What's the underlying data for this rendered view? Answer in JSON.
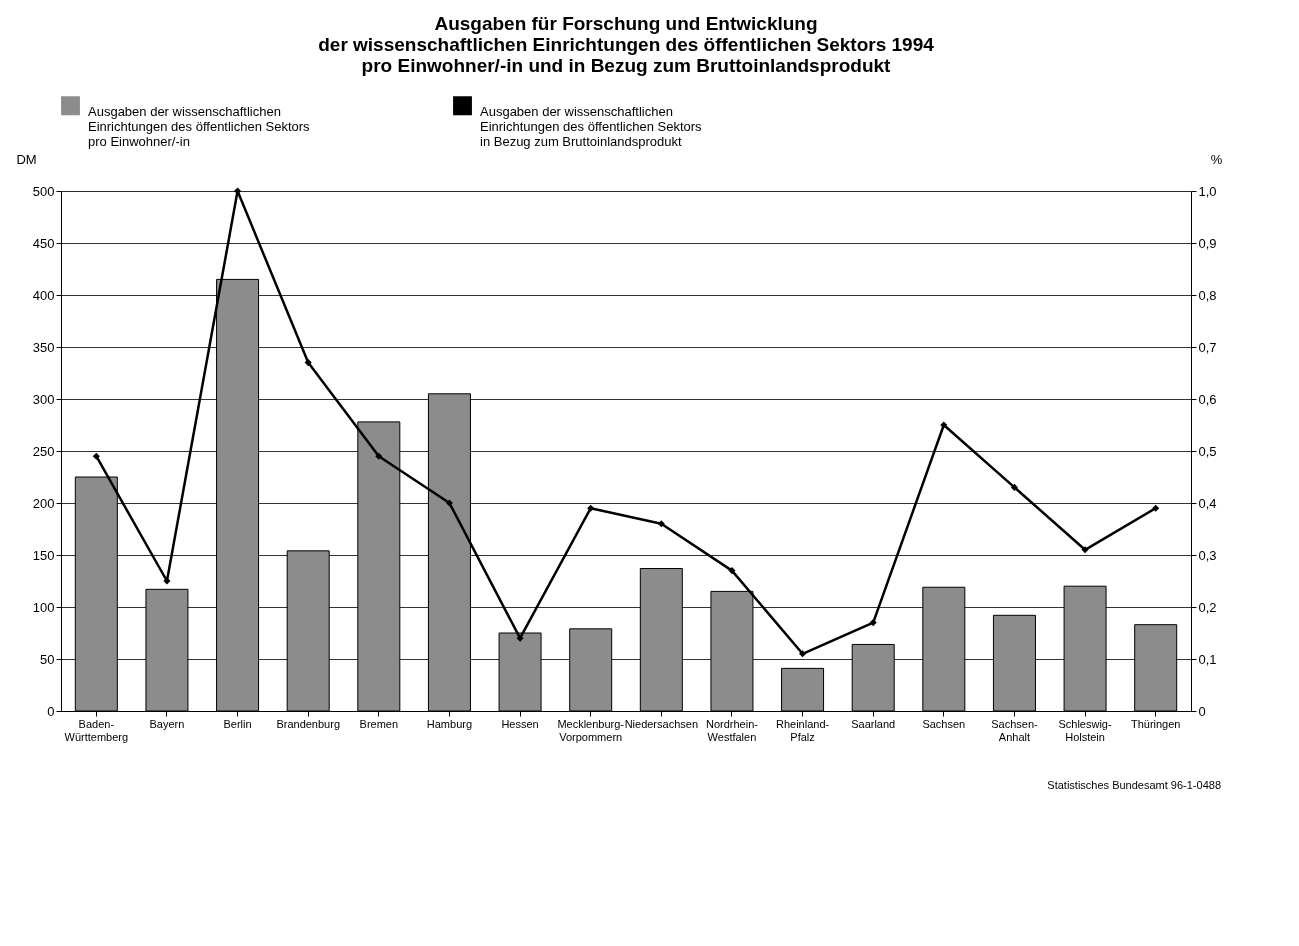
{
  "chart_data": {
    "type": "bar",
    "title": [
      "Ausgaben für Forschung und Entwicklung",
      "der wissenschaftlichen Einrichtungen des öffentlichen Sektors 1994",
      "pro Einwohner/-in und in Bezug zum Bruttoinlandsprodukt"
    ],
    "ylabel": "DM",
    "y2label": "%",
    "categories": [
      "Baden-Württemberg",
      "Bayern",
      "Berlin",
      "Brandenburg",
      "Bremen",
      "Hamburg",
      "Hessen",
      "Mecklenburg-Vorpommern",
      "Niedersachsen",
      "Nordrhein-Westfalen",
      "Rheinland-Pfalz",
      "Saarland",
      "Sachsen",
      "Sachsen-Anhalt",
      "Schleswig-Holstein",
      "Thüringen"
    ],
    "series": [
      {
        "name": "Ausgaben der wissenschaftlichen Einrichtungen des öffentlichen Sektors pro Einwohner/-in",
        "color": "#8c8c8c",
        "values": [
          225,
          117,
          415,
          154,
          278,
          305,
          75,
          79,
          137,
          115,
          41,
          64,
          119,
          92,
          120,
          83
        ]
      },
      {
        "name": "Ausgaben der wissenschaftlichen Einrichtungen des öffentlichen Sektors in Bezug zum Bruttoinlandsprodukt",
        "type": "line",
        "axis": "y2",
        "color": "#000000",
        "marker": "diamond",
        "values": [
          0.49,
          0.25,
          1.0,
          0.67,
          0.49,
          0.4,
          0.14,
          0.39,
          0.36,
          0.27,
          0.11,
          0.17,
          0.55,
          0.43,
          0.31,
          0.39
        ]
      }
    ],
    "ylim": [
      0,
      500
    ],
    "yticks": [
      0,
      50,
      100,
      150,
      200,
      250,
      300,
      350,
      400,
      450,
      500
    ],
    "y2lim": [
      0,
      1.0
    ],
    "y2ticks": [
      {
        "value": 0,
        "label": "0"
      },
      {
        "value": 0.1,
        "label": "0,1"
      },
      {
        "value": 0.2,
        "label": "0,2"
      },
      {
        "value": 0.3,
        "label": "0,3"
      },
      {
        "value": 0.4,
        "label": "0,4"
      },
      {
        "value": 0.5,
        "label": "0,5"
      },
      {
        "value": 0.6,
        "label": "0,6"
      },
      {
        "value": 0.7,
        "label": "0,7"
      },
      {
        "value": 0.8,
        "label": "0,8"
      },
      {
        "value": 0.9,
        "label": "0,9"
      },
      {
        "value": 1.0,
        "label": "1,0"
      }
    ],
    "grid": "y",
    "legend": "top",
    "annotations": [
      "Statistisches Bundesamt 96-1-0488"
    ]
  }
}
